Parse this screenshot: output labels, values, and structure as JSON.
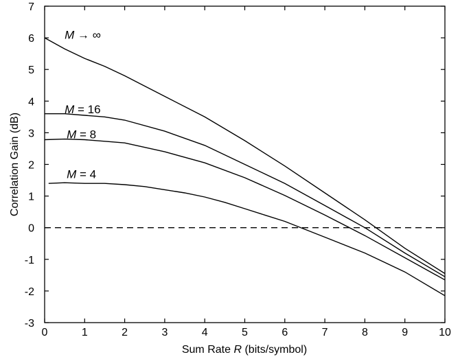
{
  "chart_data": {
    "type": "line",
    "xlabel_parts": [
      "Sum Rate ",
      "R",
      " (bits/symbol)"
    ],
    "ylabel": "Correlation Gain (dB)",
    "xlim": [
      0,
      10
    ],
    "ylim": [
      -3,
      7
    ],
    "xticks": [
      0,
      1,
      2,
      3,
      4,
      5,
      6,
      7,
      8,
      9,
      10
    ],
    "yticks": [
      -3,
      -2,
      -1,
      0,
      1,
      2,
      3,
      4,
      5,
      6,
      7
    ],
    "grid": false,
    "reference_line": {
      "y": 0,
      "style": "dashed"
    },
    "series": [
      {
        "name": "M → ∞",
        "label_parts": [
          "M",
          " → ∞"
        ],
        "label_at": [
          0.5,
          6.1
        ],
        "x": [
          0,
          0.5,
          1,
          1.5,
          2,
          3,
          4,
          5,
          6,
          7,
          8,
          9,
          10
        ],
        "y": [
          6.0,
          5.65,
          5.35,
          5.1,
          4.8,
          4.15,
          3.5,
          2.75,
          1.95,
          1.1,
          0.25,
          -0.65,
          -1.45
        ]
      },
      {
        "name": "M = 16",
        "label_parts": [
          "M",
          " = 16"
        ],
        "label_at": [
          0.5,
          3.75
        ],
        "x": [
          0,
          0.5,
          1,
          1.5,
          2,
          3,
          4,
          5,
          6,
          7,
          8,
          9,
          10
        ],
        "y": [
          3.6,
          3.6,
          3.55,
          3.5,
          3.4,
          3.05,
          2.6,
          2.0,
          1.4,
          0.7,
          0.0,
          -0.8,
          -1.55
        ]
      },
      {
        "name": "M = 8",
        "label_parts": [
          "M",
          " = 8"
        ],
        "label_at": [
          0.55,
          2.95
        ],
        "x": [
          0,
          0.5,
          1,
          1.5,
          2,
          3,
          4,
          5,
          6,
          7,
          8,
          9,
          10
        ],
        "y": [
          2.78,
          2.8,
          2.78,
          2.73,
          2.68,
          2.4,
          2.05,
          1.58,
          1.02,
          0.4,
          -0.25,
          -0.95,
          -1.65
        ]
      },
      {
        "name": "M = 4",
        "label_parts": [
          "M",
          " = 4"
        ],
        "label_at": [
          0.55,
          1.7
        ],
        "x": [
          0.1,
          0.5,
          1,
          1.5,
          2,
          2.5,
          3,
          3.5,
          4,
          4.5,
          5,
          5.5,
          6,
          6.5,
          7,
          8,
          9,
          10
        ],
        "y": [
          1.4,
          1.42,
          1.4,
          1.4,
          1.36,
          1.3,
          1.2,
          1.1,
          0.97,
          0.8,
          0.6,
          0.4,
          0.2,
          -0.05,
          -0.3,
          -0.8,
          -1.4,
          -2.15
        ]
      }
    ]
  }
}
